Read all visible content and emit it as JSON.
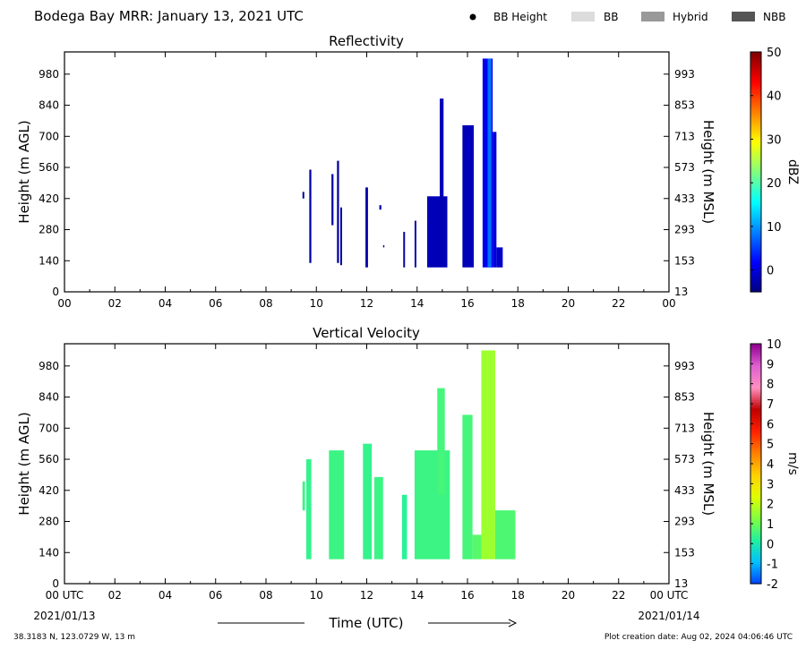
{
  "header": {
    "title": "Bodega Bay MRR:  January 13, 2021 UTC",
    "legend": [
      {
        "label": "BB Height",
        "swatch": "dot",
        "color": "#000000"
      },
      {
        "label": "BB",
        "swatch": "box",
        "color": "#dcdcdc"
      },
      {
        "label": "Hybrid",
        "swatch": "box",
        "color": "#999999"
      },
      {
        "label": "NBB",
        "swatch": "box",
        "color": "#555555"
      }
    ]
  },
  "footer": {
    "location": "38.3183 N, 123.0729 W, 13 m",
    "creation": "Plot creation date: Aug 02, 2024 04:06:46 UTC",
    "start_date": "2021/01/13",
    "end_date": "2021/01/14",
    "xlabel": "Time (UTC)"
  },
  "chart_data": [
    {
      "type": "heatmap",
      "title": "Reflectivity",
      "xlabel": "Time (UTC)",
      "ylabel": "Height (m AGL)",
      "y2label": "Height (m MSL)",
      "xlim": [
        0,
        24
      ],
      "ylim": [
        0,
        1080
      ],
      "xticks": [
        "00",
        "02",
        "04",
        "06",
        "08",
        "10",
        "12",
        "14",
        "16",
        "18",
        "20",
        "22",
        "00"
      ],
      "yticks": [
        0,
        140,
        280,
        420,
        560,
        700,
        840,
        980
      ],
      "y2ticks": [
        "13",
        "153",
        "293",
        "433",
        "573",
        "713",
        "853",
        "993"
      ],
      "colorbar": {
        "label": "dBZ",
        "min": -5,
        "max": 50,
        "ticks": [
          0,
          10,
          20,
          30,
          40,
          50
        ],
        "colormap": [
          "#00007f",
          "#0000ff",
          "#0080ff",
          "#00ffff",
          "#80ff80",
          "#ffff00",
          "#ff8000",
          "#ff0000",
          "#7f0000"
        ]
      },
      "cells": [
        {
          "t0": 9.45,
          "t1": 9.52,
          "h0": 420,
          "h1": 450,
          "v": -3
        },
        {
          "t0": 9.72,
          "t1": 9.8,
          "h0": 130,
          "h1": 550,
          "v": -3
        },
        {
          "t0": 10.6,
          "t1": 10.68,
          "h0": 300,
          "h1": 530,
          "v": -3
        },
        {
          "t0": 10.82,
          "t1": 10.9,
          "h0": 130,
          "h1": 590,
          "v": -3
        },
        {
          "t0": 10.95,
          "t1": 11.02,
          "h0": 120,
          "h1": 380,
          "v": -3
        },
        {
          "t0": 11.95,
          "t1": 12.05,
          "h0": 110,
          "h1": 470,
          "v": -3
        },
        {
          "t0": 12.5,
          "t1": 12.58,
          "h0": 370,
          "h1": 390,
          "v": -3
        },
        {
          "t0": 12.65,
          "t1": 12.7,
          "h0": 200,
          "h1": 210,
          "v": -3
        },
        {
          "t0": 13.45,
          "t1": 13.52,
          "h0": 110,
          "h1": 270,
          "v": -3
        },
        {
          "t0": 13.9,
          "t1": 13.97,
          "h0": 110,
          "h1": 320,
          "v": -3
        },
        {
          "t0": 14.4,
          "t1": 15.2,
          "h0": 110,
          "h1": 430,
          "v": -2
        },
        {
          "t0": 14.9,
          "t1": 15.05,
          "h0": 400,
          "h1": 870,
          "v": -2
        },
        {
          "t0": 15.8,
          "t1": 16.25,
          "h0": 110,
          "h1": 750,
          "v": -2
        },
        {
          "t0": 16.0,
          "t1": 16.1,
          "h0": 600,
          "h1": 700,
          "v": -1
        },
        {
          "t0": 16.6,
          "t1": 17.0,
          "h0": 110,
          "h1": 1050,
          "v": 1
        },
        {
          "t0": 16.8,
          "t1": 16.95,
          "h0": 110,
          "h1": 1050,
          "v": 8
        },
        {
          "t0": 17.0,
          "t1": 17.15,
          "h0": 110,
          "h1": 720,
          "v": 0
        },
        {
          "t0": 17.15,
          "t1": 17.4,
          "h0": 110,
          "h1": 200,
          "v": -1
        }
      ]
    },
    {
      "type": "heatmap",
      "title": "Vertical Velocity",
      "xlabel": "Time (UTC)",
      "ylabel": "Height (m AGL)",
      "y2label": "Height (m MSL)",
      "xlim": [
        0,
        24
      ],
      "ylim": [
        0,
        1080
      ],
      "xticks": [
        "00 UTC",
        "02",
        "04",
        "06",
        "08",
        "10",
        "12",
        "14",
        "16",
        "18",
        "20",
        "22",
        "00 UTC"
      ],
      "yticks": [
        0,
        140,
        280,
        420,
        560,
        700,
        840,
        980
      ],
      "y2ticks": [
        "13",
        "153",
        "293",
        "433",
        "573",
        "713",
        "853",
        "993"
      ],
      "colorbar": {
        "label": "m/s",
        "min": -2,
        "max": 10,
        "ticks": [
          -2,
          -1,
          0,
          1,
          2,
          3,
          4,
          5,
          6,
          7,
          8,
          9,
          10
        ],
        "colormap": [
          "#0040ff",
          "#00c0ff",
          "#20f0a0",
          "#80ff40",
          "#e0ff00",
          "#ffd000",
          "#ff8000",
          "#ff2000",
          "#c00000",
          "#ff90c0",
          "#e060d0",
          "#900090"
        ]
      },
      "cells": [
        {
          "t0": 9.45,
          "t1": 9.55,
          "h0": 330,
          "h1": 460,
          "v": 0.5
        },
        {
          "t0": 9.6,
          "t1": 9.8,
          "h0": 110,
          "h1": 560,
          "v": 0.4
        },
        {
          "t0": 10.5,
          "t1": 11.1,
          "h0": 110,
          "h1": 600,
          "v": 0.5
        },
        {
          "t0": 11.85,
          "t1": 12.2,
          "h0": 110,
          "h1": 630,
          "v": 0.4
        },
        {
          "t0": 12.3,
          "t1": 12.65,
          "h0": 110,
          "h1": 480,
          "v": 0.5
        },
        {
          "t0": 13.4,
          "t1": 13.6,
          "h0": 110,
          "h1": 400,
          "v": 0.3
        },
        {
          "t0": 13.9,
          "t1": 15.3,
          "h0": 110,
          "h1": 600,
          "v": 0.5
        },
        {
          "t0": 14.8,
          "t1": 15.1,
          "h0": 400,
          "h1": 880,
          "v": 0.6
        },
        {
          "t0": 15.8,
          "t1": 16.2,
          "h0": 110,
          "h1": 760,
          "v": 0.6
        },
        {
          "t0": 16.2,
          "t1": 16.55,
          "h0": 110,
          "h1": 220,
          "v": 0.8
        },
        {
          "t0": 16.55,
          "t1": 17.1,
          "h0": 110,
          "h1": 1050,
          "v": 1.6
        },
        {
          "t0": 17.1,
          "t1": 17.9,
          "h0": 110,
          "h1": 330,
          "v": 0.7
        }
      ]
    }
  ]
}
